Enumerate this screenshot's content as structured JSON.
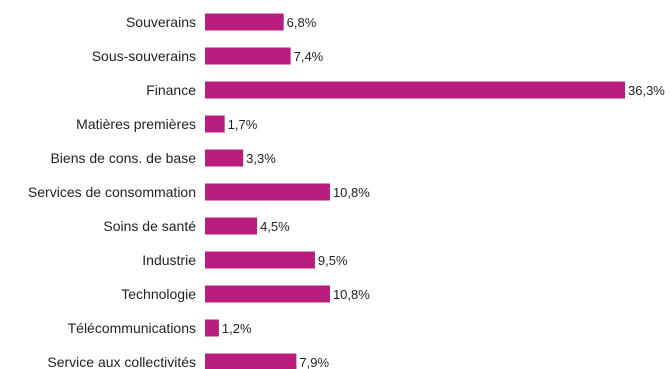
{
  "chart_data": {
    "type": "bar",
    "orientation": "horizontal",
    "title": "",
    "xlabel": "",
    "ylabel": "",
    "xlim": [
      0,
      36.3
    ],
    "grid": false,
    "legend": "none",
    "bar_color": "#B81C7D",
    "categories": [
      "Souverains",
      "Sous-souverains",
      "Finance",
      "Matières premières",
      "Biens de cons. de base",
      "Services de consommation",
      "Soins de santé",
      "Industrie",
      "Technologie",
      "Télécommunications",
      "Service aux collectivités"
    ],
    "values": [
      6.8,
      7.4,
      36.3,
      1.7,
      3.3,
      10.8,
      4.5,
      9.5,
      10.8,
      1.2,
      7.9
    ],
    "value_labels": [
      "6,8%",
      "7,4%",
      "36,3%",
      "1,7%",
      "3,3%",
      "10,8%",
      "4,5%",
      "9,5%",
      "10,8%",
      "1,2%",
      "7,9%"
    ]
  }
}
